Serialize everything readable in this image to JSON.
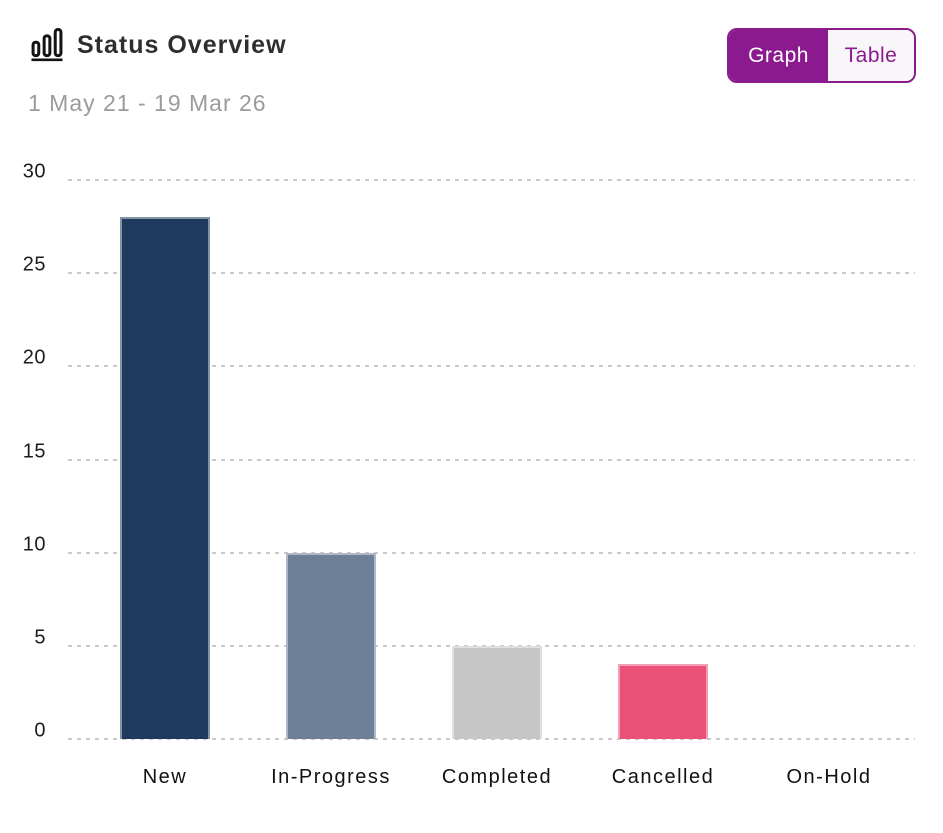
{
  "header": {
    "title": "Status Overview",
    "date_range": "1 May 21 - 19 Mar 26",
    "icon": "bar-chart-icon"
  },
  "toggle": {
    "graph_label": "Graph",
    "table_label": "Table",
    "active": "Graph",
    "accent_color": "#8A1A8E",
    "inactive_bg": "#f8f6f8"
  },
  "chart_data": {
    "type": "bar",
    "title": "Status Overview",
    "categories": [
      "New",
      "In-Progress",
      "Completed",
      "Cancelled",
      "On-Hold"
    ],
    "values": [
      28,
      10,
      5,
      4,
      0
    ],
    "colors": [
      "#1F3A5E",
      "#6D8097",
      "#C6C6C6",
      "#EA5176",
      null
    ],
    "ylim": [
      0,
      30
    ],
    "yticks": [
      0,
      5,
      10,
      15,
      20,
      25,
      30
    ],
    "xlabel": "",
    "ylabel": "",
    "grid": "horizontal-dashed",
    "gridline_color": "#C9C9C9",
    "legend": "none"
  }
}
